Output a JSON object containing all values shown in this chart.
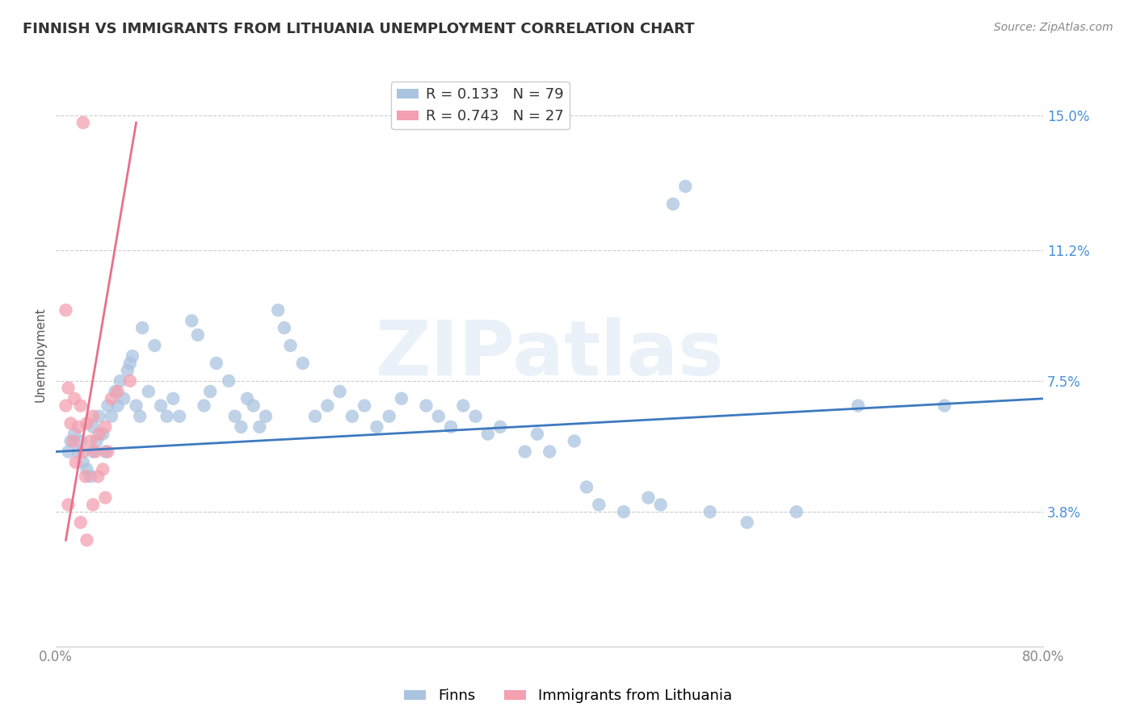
{
  "title": "FINNISH VS IMMIGRANTS FROM LITHUANIA UNEMPLOYMENT CORRELATION CHART",
  "source": "Source: ZipAtlas.com",
  "ylabel": "Unemployment",
  "ytick_labels": [
    "15.0%",
    "11.2%",
    "7.5%",
    "3.8%"
  ],
  "ytick_values": [
    0.15,
    0.112,
    0.075,
    0.038
  ],
  "ymin": 0.0,
  "ymax": 0.165,
  "xmin": 0.0,
  "xmax": 0.8,
  "finns_R": 0.133,
  "finns_N": 79,
  "lith_R": 0.743,
  "lith_N": 27,
  "finns_color": "#aac4e0",
  "lith_color": "#f4a0b0",
  "finns_line_color": "#3d7abf",
  "lith_line_color": "#e8708a",
  "background_color": "#ffffff",
  "grid_color": "#cccccc",
  "watermark": "ZIPatlas",
  "finns_x": [
    0.01,
    0.012,
    0.015,
    0.018,
    0.02,
    0.022,
    0.025,
    0.028,
    0.03,
    0.03,
    0.033,
    0.035,
    0.038,
    0.04,
    0.042,
    0.045,
    0.048,
    0.05,
    0.052,
    0.055,
    0.058,
    0.06,
    0.062,
    0.065,
    0.068,
    0.07,
    0.075,
    0.08,
    0.085,
    0.09,
    0.095,
    0.1,
    0.11,
    0.115,
    0.12,
    0.125,
    0.13,
    0.14,
    0.145,
    0.15,
    0.155,
    0.16,
    0.165,
    0.17,
    0.18,
    0.185,
    0.19,
    0.2,
    0.21,
    0.22,
    0.23,
    0.24,
    0.25,
    0.26,
    0.27,
    0.28,
    0.3,
    0.31,
    0.32,
    0.33,
    0.34,
    0.35,
    0.36,
    0.38,
    0.39,
    0.4,
    0.42,
    0.43,
    0.44,
    0.46,
    0.48,
    0.49,
    0.5,
    0.51,
    0.53,
    0.56,
    0.6,
    0.65,
    0.72
  ],
  "finns_y": [
    0.055,
    0.058,
    0.06,
    0.055,
    0.058,
    0.052,
    0.05,
    0.048,
    0.055,
    0.062,
    0.058,
    0.065,
    0.06,
    0.055,
    0.068,
    0.065,
    0.072,
    0.068,
    0.075,
    0.07,
    0.078,
    0.08,
    0.082,
    0.068,
    0.065,
    0.09,
    0.072,
    0.085,
    0.068,
    0.065,
    0.07,
    0.065,
    0.092,
    0.088,
    0.068,
    0.072,
    0.08,
    0.075,
    0.065,
    0.062,
    0.07,
    0.068,
    0.062,
    0.065,
    0.095,
    0.09,
    0.085,
    0.08,
    0.065,
    0.068,
    0.072,
    0.065,
    0.068,
    0.062,
    0.065,
    0.07,
    0.068,
    0.065,
    0.062,
    0.068,
    0.065,
    0.06,
    0.062,
    0.055,
    0.06,
    0.055,
    0.058,
    0.045,
    0.04,
    0.038,
    0.042,
    0.04,
    0.125,
    0.13,
    0.038,
    0.035,
    0.038,
    0.068,
    0.068
  ],
  "lith_x": [
    0.008,
    0.01,
    0.01,
    0.012,
    0.014,
    0.015,
    0.016,
    0.018,
    0.02,
    0.02,
    0.022,
    0.024,
    0.025,
    0.025,
    0.028,
    0.03,
    0.03,
    0.032,
    0.034,
    0.035,
    0.038,
    0.04,
    0.04,
    0.042,
    0.045,
    0.05,
    0.06
  ],
  "lith_y": [
    0.068,
    0.073,
    0.04,
    0.063,
    0.058,
    0.07,
    0.052,
    0.062,
    0.068,
    0.035,
    0.055,
    0.048,
    0.063,
    0.03,
    0.058,
    0.065,
    0.04,
    0.055,
    0.048,
    0.06,
    0.05,
    0.062,
    0.042,
    0.055,
    0.07,
    0.072,
    0.075
  ],
  "lith_extra_x": [
    0.008
  ],
  "lith_extra_y": [
    0.095
  ],
  "lith_top_x": [
    0.022
  ],
  "lith_top_y": [
    0.148
  ],
  "finns_trend_x": [
    0.0,
    0.8
  ],
  "finns_trend_y": [
    0.055,
    0.07
  ],
  "lith_trend_x": [
    0.008,
    0.065
  ],
  "lith_trend_y": [
    0.03,
    0.148
  ],
  "title_fontsize": 13,
  "axis_label_fontsize": 11,
  "tick_fontsize": 12,
  "legend_fontsize": 13,
  "source_fontsize": 10
}
